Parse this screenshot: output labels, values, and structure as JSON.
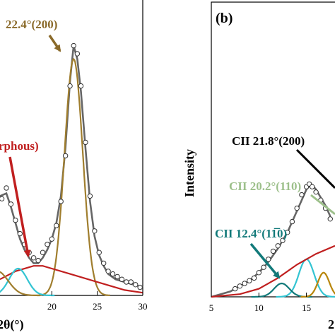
{
  "chart_data": [
    {
      "type": "line",
      "panel": "a",
      "xlabel": "2θ(°)",
      "ylabel": "",
      "xlim": [
        14.3,
        30
      ],
      "x_ticks": [
        "20",
        "25",
        "30"
      ],
      "annotations": [
        "22.4°(200)",
        "rphous)"
      ],
      "colors": {
        "fit": "#666666",
        "crystal": "#a07e2e",
        "amorphous": "#c01f1f",
        "cyan": "#33c4d2",
        "arrow_gold": "#8a6a2a",
        "arrow_red": "#c01f1f"
      },
      "series": [
        {
          "role": "measured",
          "points": [
            [
              14.5,
              0.36
            ],
            [
              15,
              0.4
            ],
            [
              15.5,
              0.34
            ],
            [
              16,
              0.28
            ],
            [
              16.5,
              0.23
            ],
            [
              17,
              0.19
            ],
            [
              17.5,
              0.16
            ],
            [
              18,
              0.14
            ],
            [
              18.5,
              0.13
            ],
            [
              19,
              0.16
            ],
            [
              19.5,
              0.19
            ],
            [
              20,
              0.21
            ],
            [
              20.5,
              0.26
            ],
            [
              21,
              0.35
            ],
            [
              21.5,
              0.52
            ],
            [
              22,
              0.78
            ],
            [
              22.4,
              0.93
            ],
            [
              22.8,
              0.9
            ],
            [
              23.2,
              0.78
            ],
            [
              23.7,
              0.57
            ],
            [
              24.2,
              0.37
            ],
            [
              24.7,
              0.24
            ],
            [
              25.2,
              0.16
            ],
            [
              25.7,
              0.12
            ],
            [
              26.2,
              0.09
            ],
            [
              26.7,
              0.08
            ],
            [
              27.2,
              0.07
            ],
            [
              27.7,
              0.06
            ],
            [
              28.2,
              0.05
            ],
            [
              28.7,
              0.05
            ],
            [
              29.2,
              0.04
            ],
            [
              29.7,
              0.03
            ]
          ]
        },
        {
          "role": "fit",
          "points": [
            [
              14.3,
              0.37
            ],
            [
              15,
              0.38
            ],
            [
              15.5,
              0.33
            ],
            [
              16,
              0.27
            ],
            [
              16.5,
              0.21
            ],
            [
              17,
              0.17
            ],
            [
              17.5,
              0.14
            ],
            [
              18,
              0.12
            ],
            [
              18.5,
              0.12
            ],
            [
              19,
              0.14
            ],
            [
              19.5,
              0.17
            ],
            [
              20,
              0.21
            ],
            [
              20.5,
              0.27
            ],
            [
              21,
              0.37
            ],
            [
              21.5,
              0.55
            ],
            [
              22,
              0.8
            ],
            [
              22.4,
              0.93
            ],
            [
              22.8,
              0.88
            ],
            [
              23.2,
              0.76
            ],
            [
              23.7,
              0.55
            ],
            [
              24.2,
              0.35
            ],
            [
              24.7,
              0.22
            ],
            [
              25.2,
              0.15
            ],
            [
              25.7,
              0.11
            ],
            [
              26.2,
              0.08
            ],
            [
              27,
              0.06
            ],
            [
              28,
              0.05
            ],
            [
              29,
              0.04
            ],
            [
              30,
              0.03
            ]
          ]
        },
        {
          "role": "crystal_200",
          "center": 22.4,
          "height": 0.88,
          "width": 1.0
        },
        {
          "role": "amorphous",
          "points": [
            [
              14.3,
              0.06
            ],
            [
              16,
              0.09
            ],
            [
              18,
              0.11
            ],
            [
              19,
              0.11
            ],
            [
              20,
              0.1
            ],
            [
              22,
              0.08
            ],
            [
              24,
              0.06
            ],
            [
              26,
              0.04
            ],
            [
              28,
              0.02
            ],
            [
              30,
              0.01
            ]
          ]
        },
        {
          "role": "cyan_peak",
          "center": 16.3,
          "height": 0.1,
          "width": 1.0
        },
        {
          "role": "gold_small",
          "center": 14.0,
          "height": 0.09,
          "width": 1.2
        }
      ]
    },
    {
      "type": "line",
      "panel": "b",
      "label": "(b)",
      "ylabel": "Intensity",
      "xlabel": "2",
      "xlim": [
        5,
        18
      ],
      "x_ticks": [
        "5",
        "10",
        "15"
      ],
      "annotations": [
        "CII 21.8°(200)",
        "CII 20.2°(110)",
        "CII 12.4°(11̅0)"
      ],
      "colors": {
        "black": "#000000",
        "green": "#9dc08b",
        "teal": "#127a7a",
        "cyan": "#33c4d2",
        "red": "#c01f1f",
        "gold": "#b8860b",
        "fit": "#666666"
      },
      "series": [
        {
          "role": "measured",
          "points": [
            [
              7.5,
              0.03
            ],
            [
              8,
              0.04
            ],
            [
              8.5,
              0.05
            ],
            [
              9,
              0.06
            ],
            [
              9.5,
              0.07
            ],
            [
              10,
              0.09
            ],
            [
              10.5,
              0.11
            ],
            [
              11,
              0.14
            ],
            [
              11.5,
              0.17
            ],
            [
              12,
              0.19
            ],
            [
              12.5,
              0.21
            ],
            [
              13,
              0.24
            ],
            [
              13.5,
              0.28
            ],
            [
              14,
              0.33
            ],
            [
              14.5,
              0.38
            ],
            [
              15,
              0.41
            ],
            [
              15.3,
              0.42
            ],
            [
              15.6,
              0.41
            ],
            [
              16,
              0.39
            ],
            [
              16.5,
              0.36
            ],
            [
              17,
              0.33
            ],
            [
              17.5,
              0.29
            ]
          ]
        },
        {
          "role": "fit",
          "points": [
            [
              5,
              0.0
            ],
            [
              6,
              0.01
            ],
            [
              7,
              0.02
            ],
            [
              8,
              0.04
            ],
            [
              9,
              0.06
            ],
            [
              10,
              0.09
            ],
            [
              11,
              0.13
            ],
            [
              12,
              0.18
            ],
            [
              13,
              0.24
            ],
            [
              14,
              0.32
            ],
            [
              15,
              0.4
            ],
            [
              15.5,
              0.42
            ],
            [
              16,
              0.4
            ],
            [
              17,
              0.34
            ],
            [
              17.5,
              0.3
            ]
          ]
        },
        {
          "role": "cyan_peak",
          "center": 15.0,
          "height": 0.14,
          "width": 0.8
        },
        {
          "role": "teal_peak",
          "center": 12.4,
          "height": 0.05,
          "width": 0.8
        },
        {
          "role": "gold_peak",
          "center": 16.8,
          "height": 0.09,
          "width": 0.6
        },
        {
          "role": "amorphous",
          "points": [
            [
              5,
              0.0
            ],
            [
              8,
              0.01
            ],
            [
              10,
              0.03
            ],
            [
              12,
              0.07
            ],
            [
              14,
              0.12
            ],
            [
              16,
              0.16
            ],
            [
              18,
              0.19
            ]
          ]
        }
      ]
    }
  ]
}
